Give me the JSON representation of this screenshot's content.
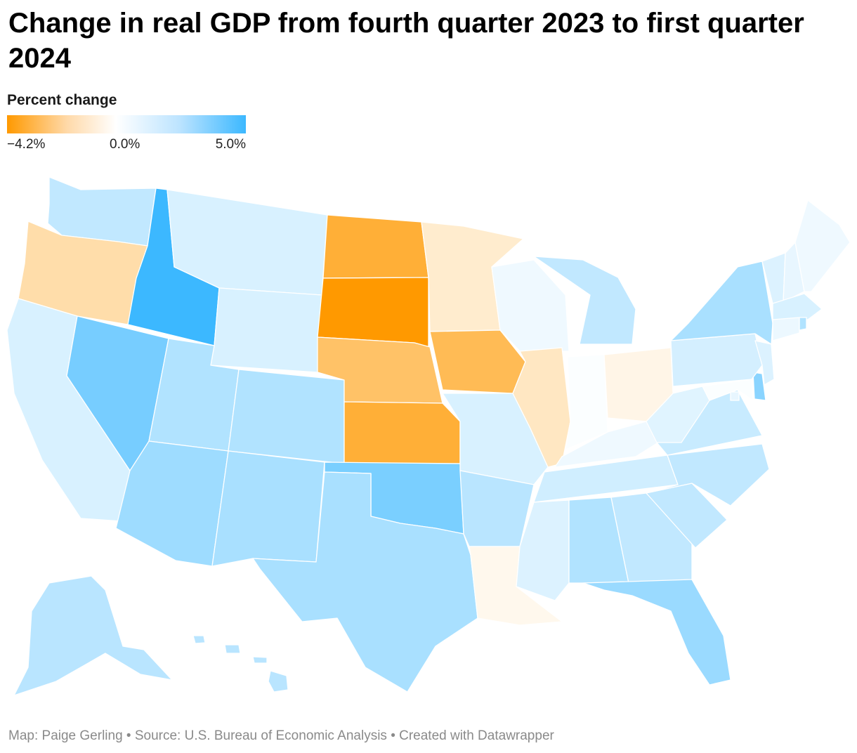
{
  "title": "Change in real GDP from fourth quarter 2023 to first quarter 2024",
  "legend": {
    "title": "Percent change",
    "min_label": "−4.2%",
    "mid_label": "0.0%",
    "max_label": "5.0%",
    "min": -4.2,
    "max": 5.0,
    "colors": {
      "negative": "#ff9900",
      "zero": "#ffffff",
      "positive": "#3cb8ff"
    }
  },
  "footer": {
    "text": "Map: Paige Gerling • Source: U.S. Bureau of Economic Analysis • Created with Datawrapper"
  },
  "chart_data": {
    "type": "choropleth",
    "metric": "Percent change",
    "scale": {
      "min": -4.2,
      "mid": 0.0,
      "max": 5.0
    },
    "states": {
      "WA": 1.6,
      "OR": -1.4,
      "CA": 1.0,
      "ID": 5.0,
      "NV": 3.5,
      "MT": 1.0,
      "WY": 1.0,
      "UT": 2.0,
      "CO": 2.0,
      "AZ": 2.5,
      "NM": 2.2,
      "ND": -3.3,
      "SD": -4.2,
      "NE": -2.5,
      "KS": -3.3,
      "OK": 3.4,
      "TX": 2.2,
      "MN": -0.8,
      "IA": -2.8,
      "MO": 1.0,
      "AR": 1.8,
      "LA": -0.3,
      "WI": 0.4,
      "IL": -1.0,
      "MI": 1.6,
      "IN": 0.1,
      "OH": -0.4,
      "KY": 0.4,
      "TN": 1.2,
      "MS": 0.9,
      "AL": 2.0,
      "GA": 1.6,
      "FL": 2.6,
      "SC": 1.6,
      "NC": 1.6,
      "VA": 1.4,
      "WV": 0.8,
      "PA": 1.1,
      "NY": 2.2,
      "VT": 0.9,
      "NH": 0.6,
      "ME": 0.4,
      "MA": 1.0,
      "RI": 2.0,
      "CT": 0.5,
      "NJ": 0.9,
      "DE": 3.0,
      "MD": 0.1,
      "DC": 0.6,
      "AK": 1.8,
      "HI": 1.8
    }
  }
}
